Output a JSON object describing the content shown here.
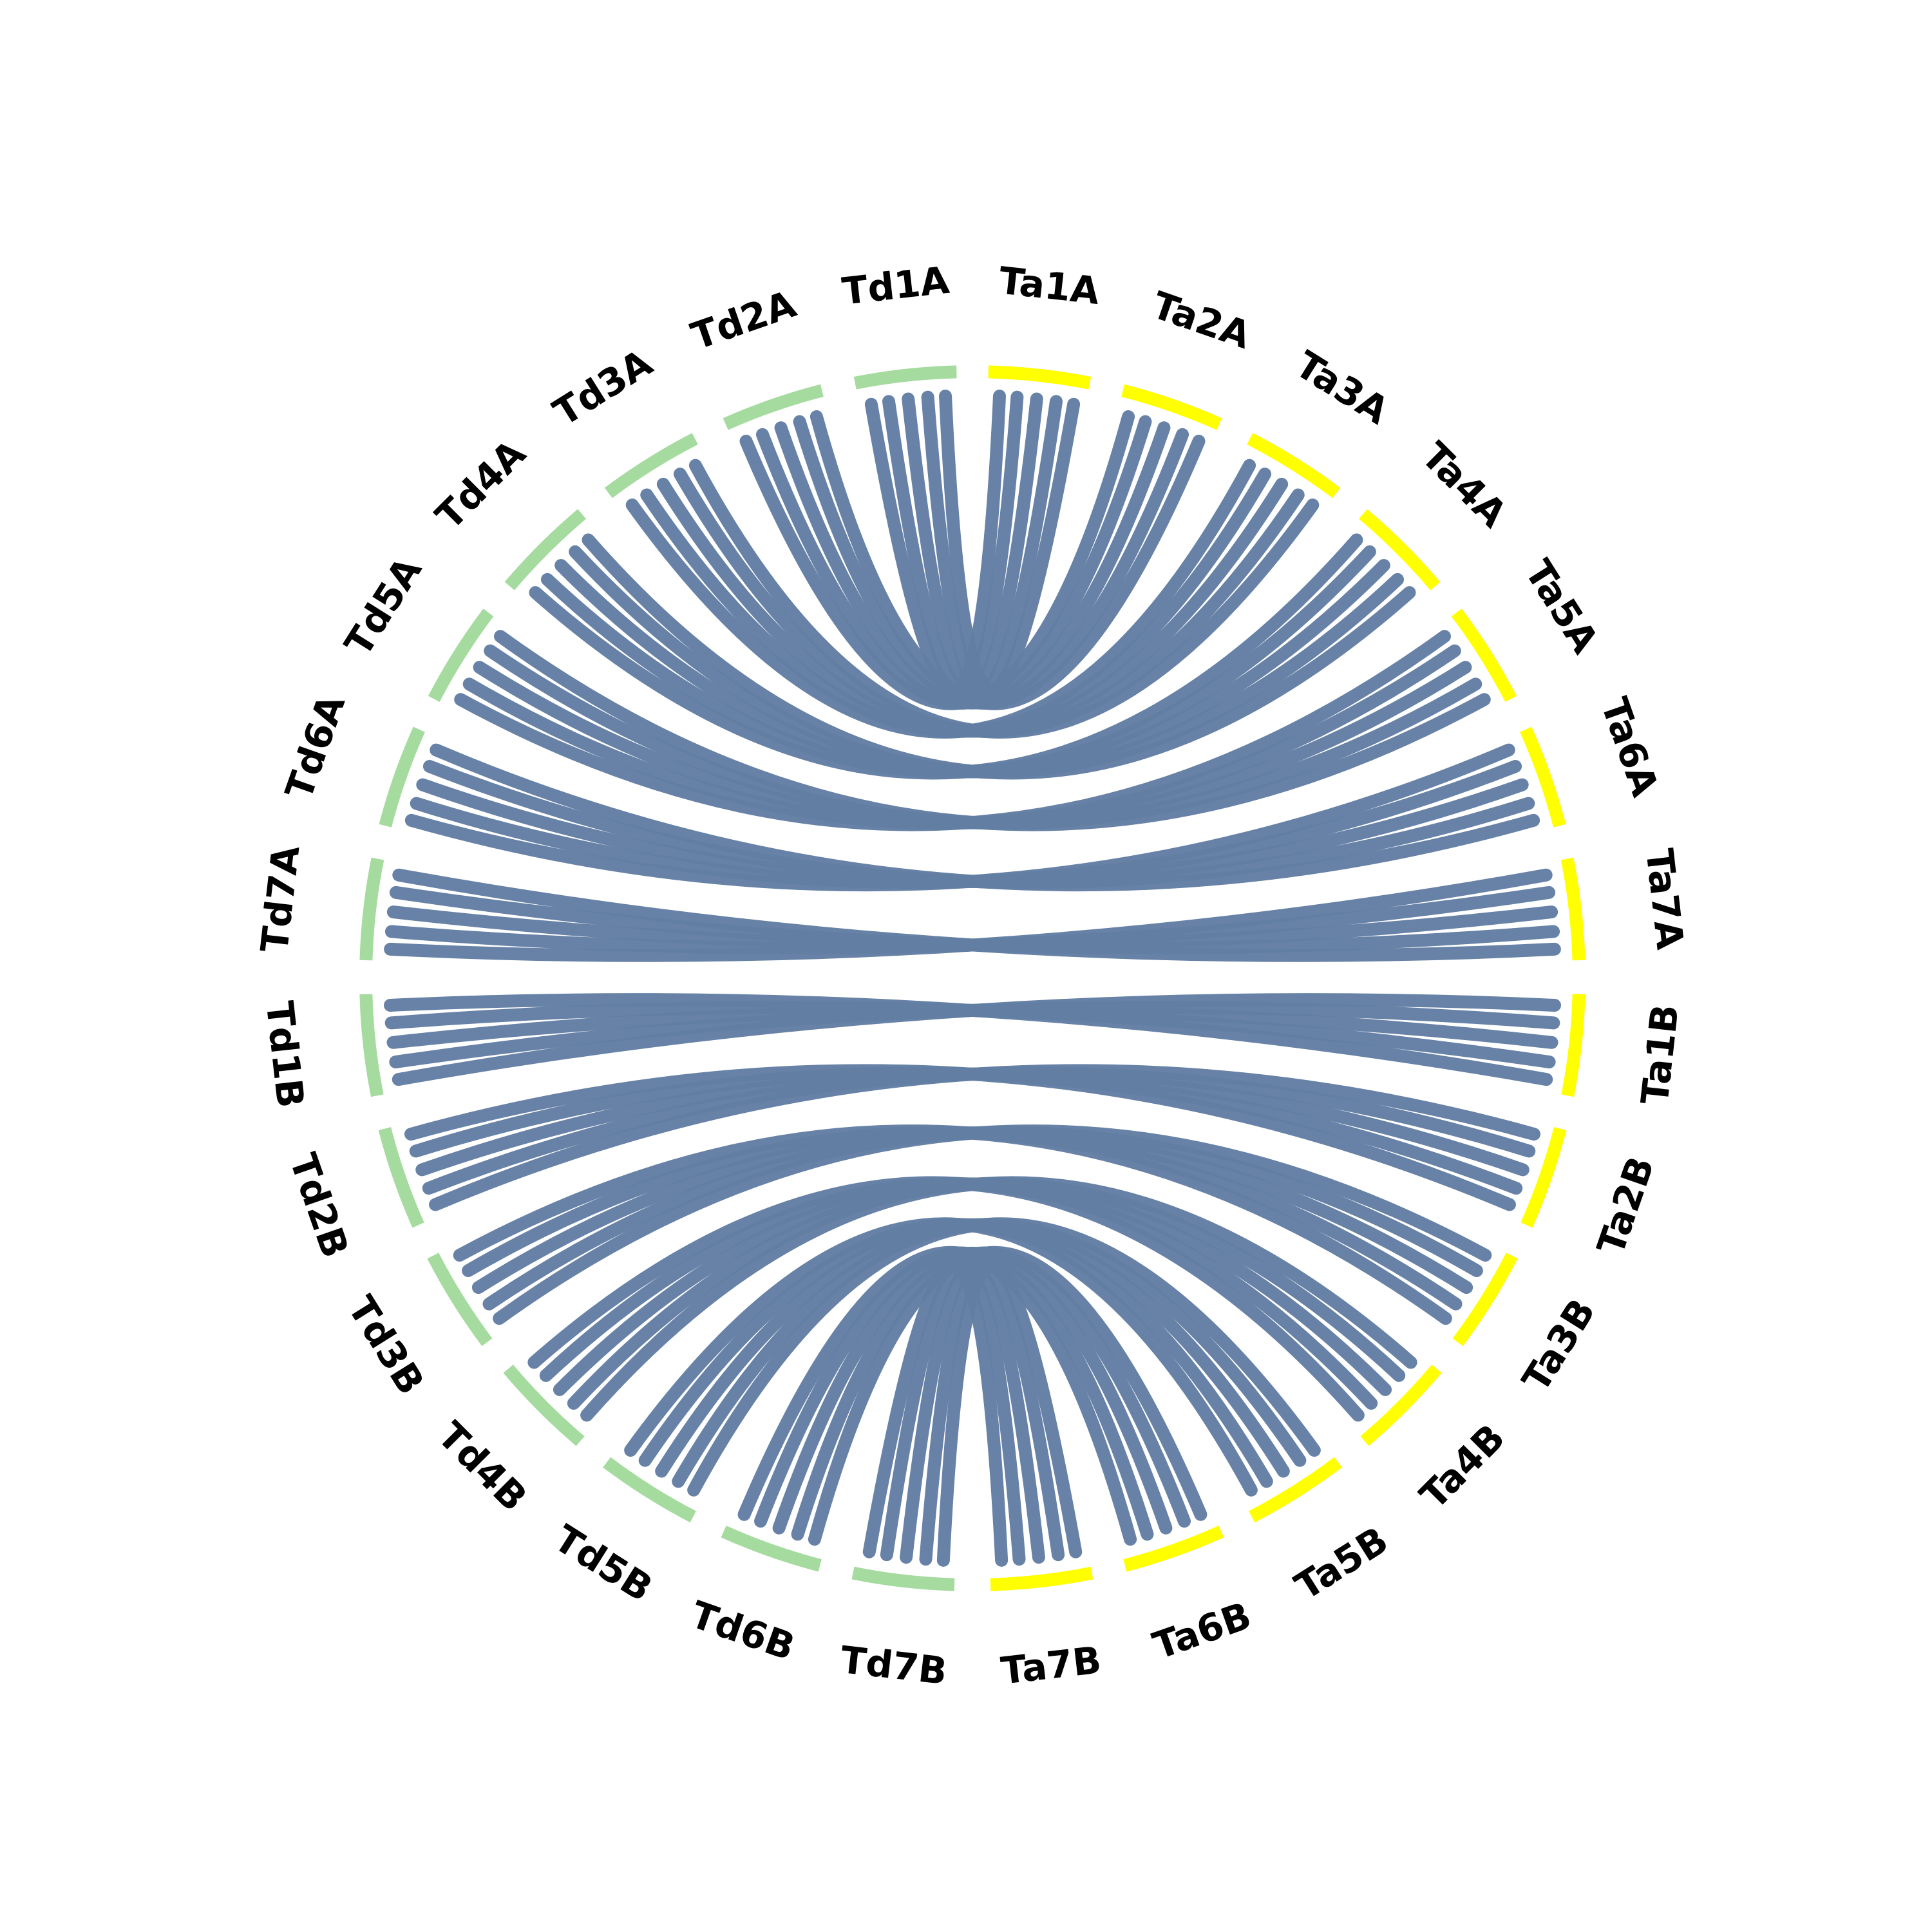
{
  "td_chromosomes": [
    "Td1A",
    "Td2A",
    "Td3A",
    "Td4A",
    "Td5A",
    "Td6A",
    "Td7A",
    "Td1B",
    "Td2B",
    "Td3B",
    "Td4B",
    "Td5B",
    "Td6B",
    "Td7B"
  ],
  "ta_chromosomes": [
    "Ta1A",
    "Ta2A",
    "Ta3A",
    "Ta4A",
    "Ta5A",
    "Ta6A",
    "Ta7A",
    "Ta1B",
    "Ta2B",
    "Ta3B",
    "Ta4B",
    "Ta5B",
    "Ta6B",
    "Ta7B"
  ],
  "td_color": "#a6dba0",
  "ta_color": "#ffff00",
  "link_color": "#627ea3"
}
